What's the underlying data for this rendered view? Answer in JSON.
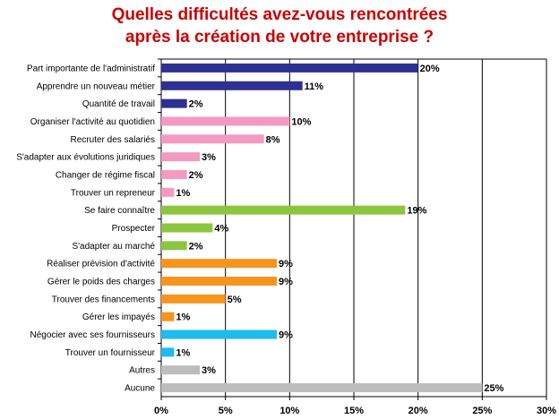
{
  "chart_data": {
    "type": "bar",
    "orientation": "horizontal",
    "title_lines": [
      "Quelles difficultés avez-vous rencontrées",
      "après la création de votre entreprise ?"
    ],
    "xlim": [
      0,
      30
    ],
    "x_ticks": [
      "0%",
      "5%",
      "10%",
      "15%",
      "20%",
      "25%",
      "30%"
    ],
    "grid": "vertical",
    "legend": "none",
    "colors": {
      "title": "#cc0000",
      "navy": "#2e3192",
      "pink": "#f49ac2",
      "green": "#8cc63f",
      "orange": "#f7941d",
      "cyan": "#1ebbee",
      "gray": "#bdbdbd"
    },
    "bars": [
      {
        "category": "Part importante de l'administratif",
        "value": 20,
        "label": "20%",
        "color": "navy"
      },
      {
        "category": "Apprendre un nouveau métier",
        "value": 11,
        "label": "11%",
        "color": "navy"
      },
      {
        "category": "Quantité de travail",
        "value": 2,
        "label": "2%",
        "color": "navy"
      },
      {
        "category": "Organiser l'activité au quotidien",
        "value": 10,
        "label": "10%",
        "color": "pink"
      },
      {
        "category": "Recruter des salariés",
        "value": 8,
        "label": "8%",
        "color": "pink"
      },
      {
        "category": "S'adapter aux évolutions juridiques",
        "value": 3,
        "label": "3%",
        "color": "pink"
      },
      {
        "category": "Changer de régime fiscal",
        "value": 2,
        "label": "2%",
        "color": "pink"
      },
      {
        "category": "Trouver un repreneur",
        "value": 1,
        "label": "1%",
        "color": "pink"
      },
      {
        "category": "Se faire connaître",
        "value": 19,
        "label": "19%",
        "color": "green"
      },
      {
        "category": "Prospecter",
        "value": 4,
        "label": "4%",
        "color": "green"
      },
      {
        "category": "S'adapter au marché",
        "value": 2,
        "label": "2%",
        "color": "green"
      },
      {
        "category": "Réaliser prévision d'activité",
        "value": 9,
        "label": "9%",
        "color": "orange"
      },
      {
        "category": "Gérer le poids des charges",
        "value": 9,
        "label": "9%",
        "color": "orange"
      },
      {
        "category": "Trouver des financements",
        "value": 5,
        "label": "5%",
        "color": "orange"
      },
      {
        "category": "Gérer les impayés",
        "value": 1,
        "label": "1%",
        "color": "orange"
      },
      {
        "category": "Négocier avec ses fournisseurs",
        "value": 9,
        "label": "9%",
        "color": "cyan"
      },
      {
        "category": "Trouver un fournisseur",
        "value": 1,
        "label": "1%",
        "color": "cyan"
      },
      {
        "category": "Autres",
        "value": 3,
        "label": "3%",
        "color": "gray"
      },
      {
        "category": "Aucune",
        "value": 25,
        "label": "25%",
        "color": "gray"
      }
    ]
  }
}
